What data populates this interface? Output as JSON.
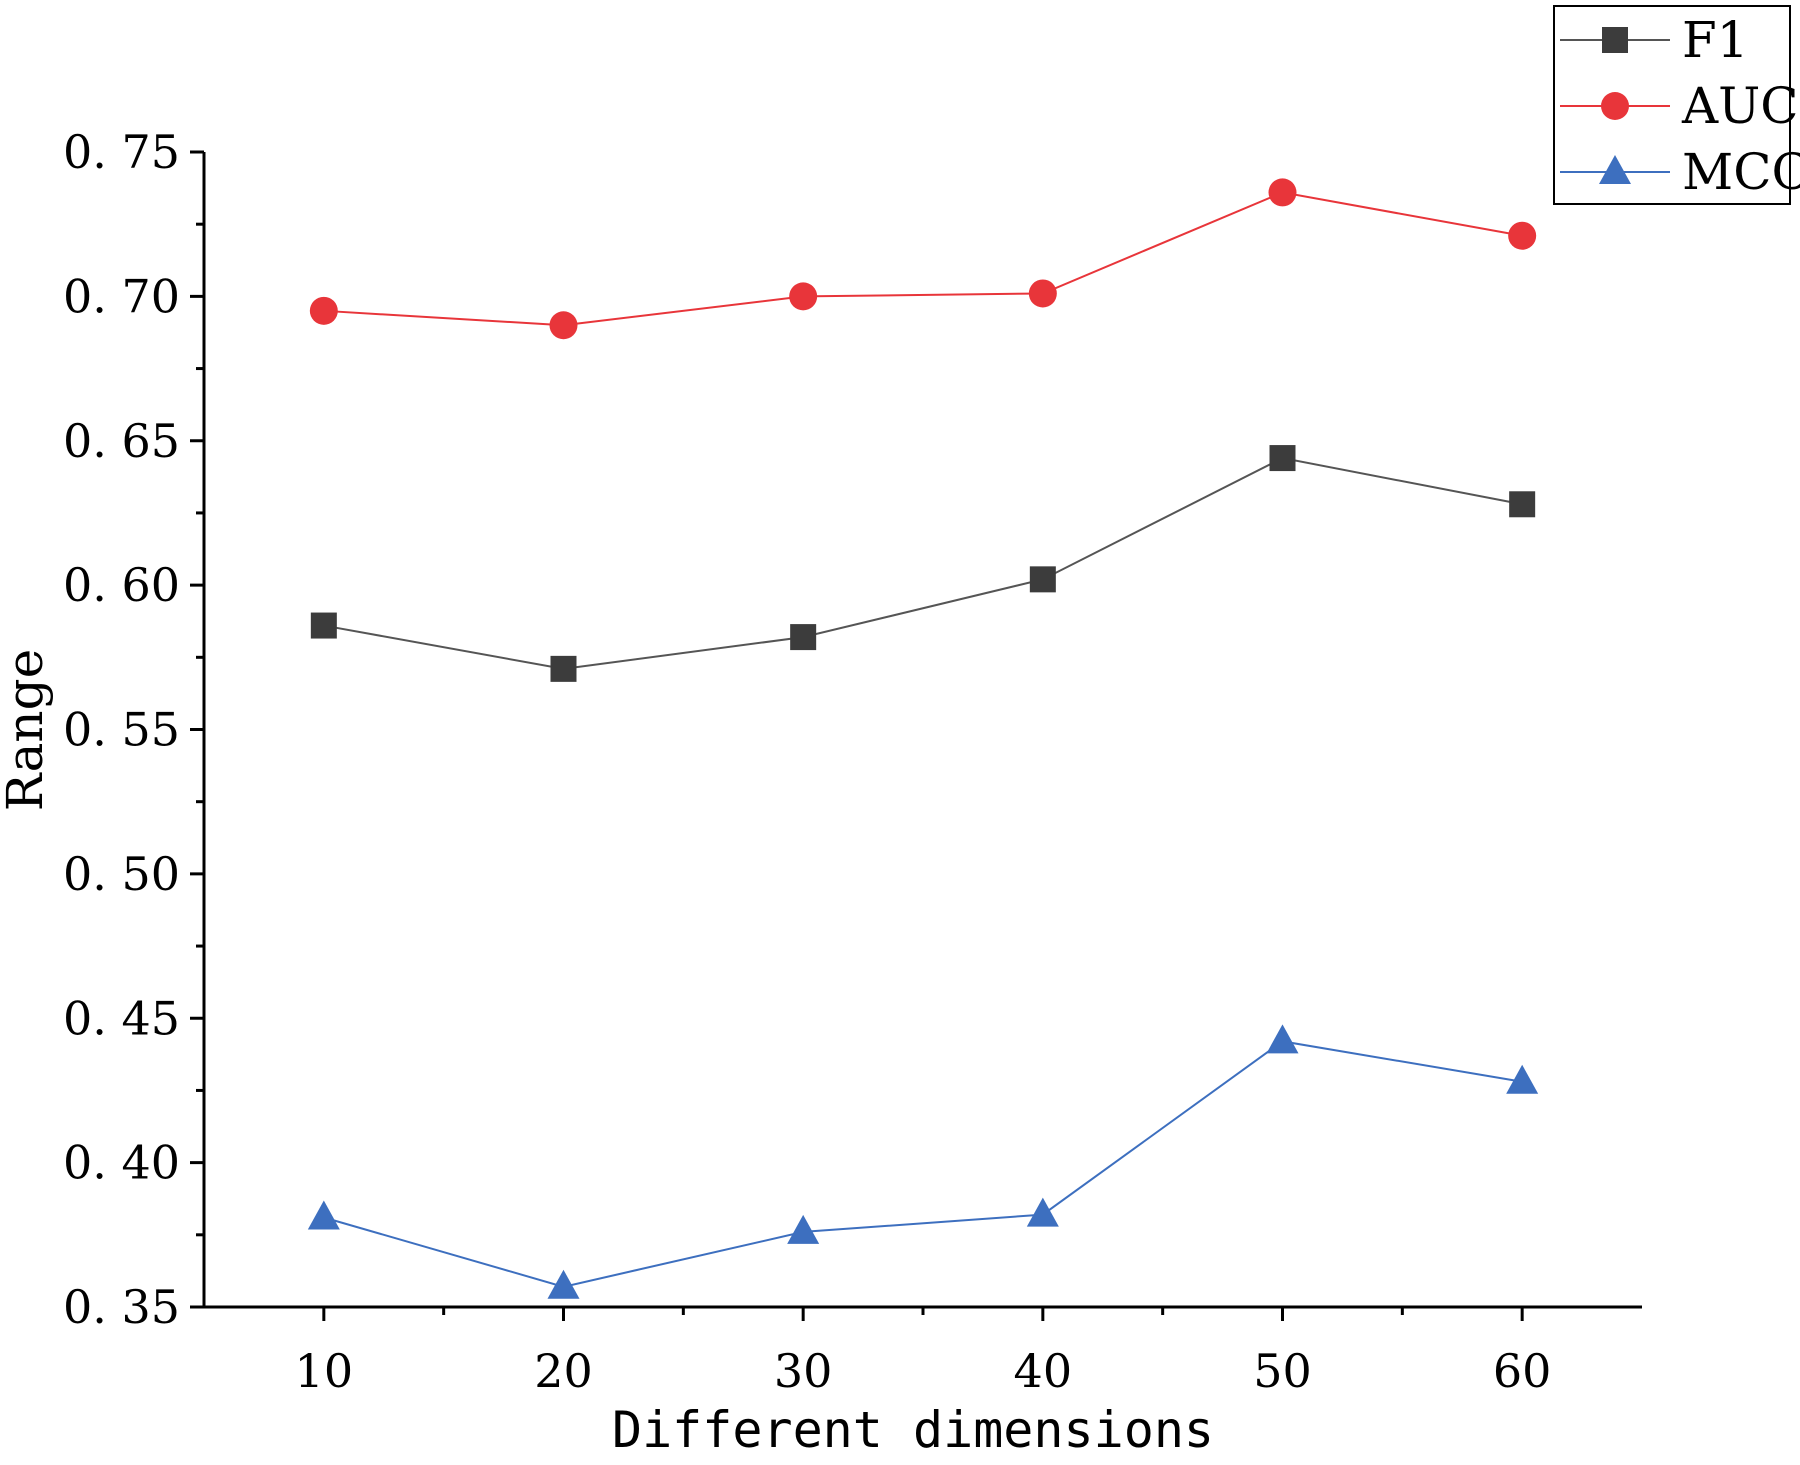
{
  "chart_data": {
    "type": "line",
    "title": "",
    "xlabel": "Different dimensions",
    "ylabel": "Range",
    "x": [
      10,
      20,
      30,
      40,
      50,
      60
    ],
    "x_tick_labels": [
      "10",
      "20",
      "30",
      "40",
      "50",
      "60"
    ],
    "xlim": [
      5,
      65
    ],
    "ylim": [
      0.35,
      0.75
    ],
    "y_tick_labels": [
      "0. 35",
      "0. 40",
      "0. 45",
      "0. 50",
      "0. 55",
      "0. 60",
      "0. 65",
      "0. 70",
      "0. 75"
    ],
    "y_tick_values": [
      0.35,
      0.4,
      0.45,
      0.5,
      0.55,
      0.6,
      0.65,
      0.7,
      0.75
    ],
    "grid": false,
    "legend_position": "top-right",
    "series": [
      {
        "name": "F1",
        "marker": "square",
        "color": "#3c3c3c",
        "line_color": "#555555",
        "values": [
          0.586,
          0.571,
          0.582,
          0.602,
          0.644,
          0.628
        ]
      },
      {
        "name": "AUC",
        "marker": "circle",
        "color": "#e8353a",
        "line_color": "#e8353a",
        "values": [
          0.695,
          0.69,
          0.7,
          0.701,
          0.736,
          0.721
        ]
      },
      {
        "name": "MCC",
        "marker": "triangle",
        "color": "#3d6fbf",
        "line_color": "#3d6fbf",
        "values": [
          0.381,
          0.357,
          0.376,
          0.382,
          0.442,
          0.428
        ]
      }
    ]
  }
}
